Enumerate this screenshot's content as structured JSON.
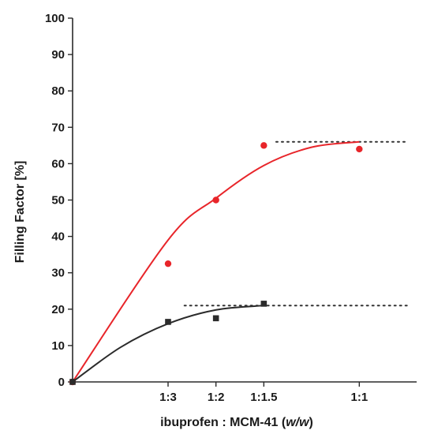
{
  "chart_data": {
    "type": "scatter",
    "ylabel": "Filling Factor [%]",
    "xlabel_parts": [
      "ibuprofen : MCM-41 (",
      "w/w",
      ")"
    ],
    "ylim": [
      0,
      100
    ],
    "yticks": [
      0,
      10,
      20,
      30,
      40,
      50,
      60,
      70,
      80,
      90,
      100
    ],
    "xlim": [
      0,
      1.2
    ],
    "xticks": [
      {
        "value": 0.333,
        "label": "1:3"
      },
      {
        "value": 0.5,
        "label": "1:2"
      },
      {
        "value": 0.667,
        "label": "1:1.5"
      },
      {
        "value": 1.0,
        "label": "1:1"
      }
    ],
    "legend": "none",
    "grid": false,
    "series": [
      {
        "marker": "circle",
        "color": "#e8252a",
        "points": [
          [
            0,
            0
          ],
          [
            0.333,
            32.5
          ],
          [
            0.5,
            50
          ],
          [
            0.667,
            65
          ],
          [
            1.0,
            64
          ]
        ],
        "fit": [
          [
            0,
            0
          ],
          [
            0.333,
            39
          ],
          [
            0.5,
            50.5
          ],
          [
            0.667,
            59.5
          ],
          [
            0.833,
            64.5
          ],
          [
            1.0,
            66
          ]
        ],
        "plateau": {
          "y": 66,
          "x_from": 0.71,
          "x_to": 1.17
        }
      },
      {
        "marker": "square",
        "color": "#2b2b2b",
        "points": [
          [
            0,
            0
          ],
          [
            0.333,
            16.5
          ],
          [
            0.5,
            17.5
          ],
          [
            0.667,
            21.5
          ]
        ],
        "fit": [
          [
            0,
            0
          ],
          [
            0.167,
            9.5
          ],
          [
            0.333,
            16
          ],
          [
            0.5,
            19.8
          ],
          [
            0.667,
            21
          ]
        ],
        "plateau": {
          "y": 21,
          "x_from": 0.39,
          "x_to": 1.17
        }
      }
    ]
  }
}
